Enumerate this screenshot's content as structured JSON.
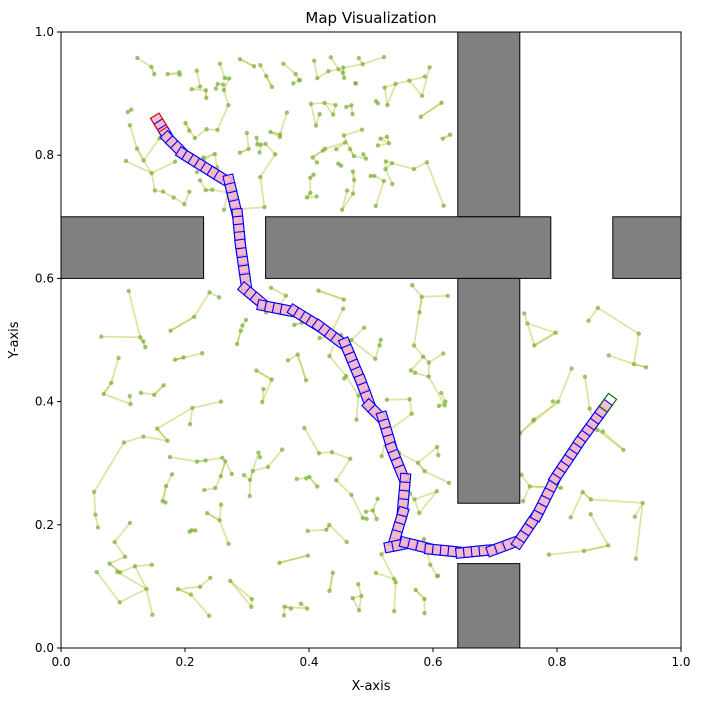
{
  "chart_data": {
    "type": "scatter",
    "title": "Map Visualization",
    "xlabel": "X-axis",
    "ylabel": "Y-axis",
    "xlim": [
      0,
      1
    ],
    "ylim": [
      0,
      1
    ],
    "xticks": [
      "0.0",
      "0.2",
      "0.4",
      "0.6",
      "0.8",
      "1.0"
    ],
    "yticks": [
      "0.0",
      "0.2",
      "0.4",
      "0.6",
      "0.8",
      "1.0"
    ],
    "grid": false,
    "colors": {
      "obstacle_fill": "#808080",
      "obstacle_edge": "#000000",
      "tree_edge": "#b5b81e",
      "tree_node": "#7cb342",
      "path_box_edge": "#0000ff",
      "path_box_fill": "#f5b7c8",
      "start_box_edge": "#ff0000",
      "goal_box_edge": "#006400"
    },
    "obstacles": [
      {
        "x0": 0.64,
        "y0": 0.7,
        "x1": 0.74,
        "y1": 1.0
      },
      {
        "x0": 0.0,
        "y0": 0.6,
        "x1": 0.23,
        "y1": 0.7
      },
      {
        "x0": 0.33,
        "y0": 0.6,
        "x1": 0.79,
        "y1": 0.7
      },
      {
        "x0": 0.89,
        "y0": 0.6,
        "x1": 1.0,
        "y1": 0.7
      },
      {
        "x0": 0.64,
        "y0": 0.235,
        "x1": 0.74,
        "y1": 0.6
      },
      {
        "x0": 0.64,
        "y0": 0.0,
        "x1": 0.74,
        "y1": 0.137
      }
    ],
    "path": [
      [
        0.158,
        0.853
      ],
      [
        0.175,
        0.825
      ],
      [
        0.2,
        0.8
      ],
      [
        0.24,
        0.775
      ],
      [
        0.272,
        0.755
      ],
      [
        0.285,
        0.7
      ],
      [
        0.29,
        0.65
      ],
      [
        0.3,
        0.58
      ],
      [
        0.33,
        0.555
      ],
      [
        0.38,
        0.545
      ],
      [
        0.42,
        0.52
      ],
      [
        0.46,
        0.49
      ],
      [
        0.485,
        0.43
      ],
      [
        0.5,
        0.39
      ],
      [
        0.52,
        0.37
      ],
      [
        0.535,
        0.32
      ],
      [
        0.555,
        0.27
      ],
      [
        0.55,
        0.215
      ],
      [
        0.535,
        0.165
      ],
      [
        0.56,
        0.17
      ],
      [
        0.6,
        0.16
      ],
      [
        0.65,
        0.155
      ],
      [
        0.7,
        0.16
      ],
      [
        0.74,
        0.175
      ],
      [
        0.77,
        0.22
      ],
      [
        0.8,
        0.28
      ],
      [
        0.84,
        0.34
      ],
      [
        0.882,
        0.398
      ]
    ],
    "start": [
      0.158,
      0.853
    ],
    "goal": [
      0.882,
      0.398
    ]
  }
}
